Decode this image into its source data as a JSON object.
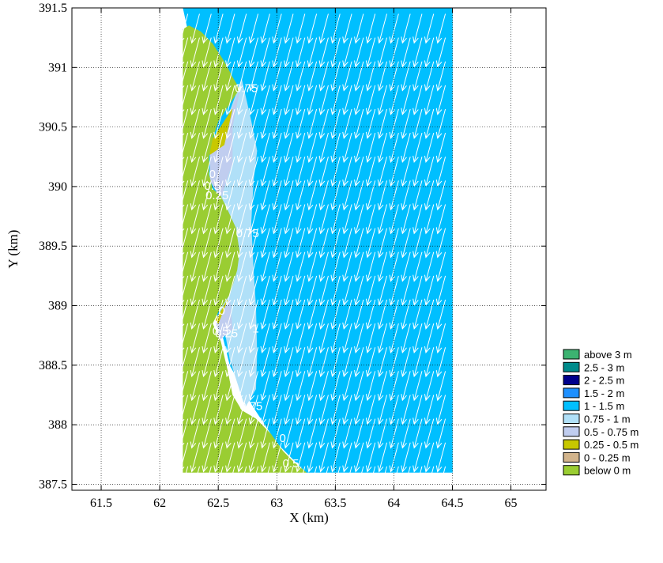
{
  "chart_data": {
    "type": "heatmap",
    "xlabel": "X (km)",
    "ylabel": "Y (km)",
    "xlim": [
      61.25,
      65.3
    ],
    "ylim": [
      387.45,
      391.5
    ],
    "x_ticks": [
      61.5,
      62,
      62.5,
      63,
      63.5,
      64,
      64.5,
      65
    ],
    "y_ticks": [
      387.5,
      388,
      388.5,
      389,
      389.5,
      390,
      390.5,
      391,
      391.5
    ],
    "x_tick_labels": [
      "61.5",
      "62",
      "62.5",
      "63",
      "63.5",
      "64",
      "64.5",
      "65"
    ],
    "y_tick_labels": [
      "387.5",
      "388",
      "388.5",
      "389",
      "389.5",
      "390",
      "390.5",
      "391",
      "391.5"
    ],
    "grid": true,
    "legend_position": "right-bottom",
    "legend": [
      {
        "label": "above 3 m",
        "color": "#3cb371"
      },
      {
        "label": "2.5 - 3 m",
        "color": "#008b8b"
      },
      {
        "label": "2 - 2.5 m",
        "color": "#00008b"
      },
      {
        "label": "1.5 - 2 m",
        "color": "#1e90ff"
      },
      {
        "label": "1 - 1.5 m",
        "color": "#00bfff"
      },
      {
        "label": "0.75 - 1 m",
        "color": "#b0e0f8"
      },
      {
        "label": "0.5 - 0.75 m",
        "color": "#c0cdef"
      },
      {
        "label": "0.25 - 0.5 m",
        "color": "#c8c800"
      },
      {
        "label": "0 - 0.25 m",
        "color": "#d2b48c"
      },
      {
        "label": "below 0 m",
        "color": "#9acd32"
      }
    ],
    "domain": {
      "x": [
        62.2,
        64.5
      ],
      "y": [
        387.6,
        391.5
      ]
    },
    "regions": [
      {
        "band": "1 - 1.5 m",
        "color": "#00bfff",
        "polygon": [
          [
            62.2,
            391.5
          ],
          [
            64.5,
            391.5
          ],
          [
            64.5,
            387.6
          ],
          [
            63.25,
            387.6
          ],
          [
            63.0,
            387.85
          ],
          [
            62.8,
            388.15
          ],
          [
            62.6,
            388.5
          ],
          [
            62.45,
            389.1
          ],
          [
            62.4,
            389.9
          ],
          [
            62.4,
            390.6
          ],
          [
            62.2,
            391.5
          ]
        ]
      },
      {
        "band": "0.75 - 1 m",
        "color": "#b0e0f8",
        "polygon": [
          [
            62.7,
            390.9
          ],
          [
            62.78,
            390.55
          ],
          [
            62.83,
            390.3
          ],
          [
            62.8,
            390.05
          ],
          [
            62.78,
            389.7
          ],
          [
            62.8,
            389.3
          ],
          [
            62.82,
            389.0
          ],
          [
            62.83,
            388.6
          ],
          [
            62.82,
            388.3
          ],
          [
            62.73,
            388.15
          ],
          [
            62.6,
            388.55
          ],
          [
            62.5,
            389.1
          ],
          [
            62.55,
            389.8
          ],
          [
            62.45,
            390.1
          ],
          [
            62.55,
            390.5
          ],
          [
            62.7,
            390.9
          ]
        ]
      },
      {
        "band": "0.5 - 0.75 m",
        "color": "#c0cdef",
        "polygon": [
          [
            62.68,
            390.8
          ],
          [
            62.55,
            390.5
          ],
          [
            62.43,
            390.3
          ],
          [
            62.43,
            390.05
          ],
          [
            62.52,
            389.9
          ],
          [
            62.62,
            390.2
          ],
          [
            62.62,
            390.5
          ],
          [
            62.68,
            390.8
          ]
        ]
      },
      {
        "band": "0.5 - 0.75 m",
        "color": "#c0cdef",
        "polygon": [
          [
            62.6,
            389.05
          ],
          [
            62.48,
            388.85
          ],
          [
            62.52,
            388.72
          ],
          [
            62.62,
            388.8
          ],
          [
            62.6,
            389.05
          ]
        ]
      },
      {
        "band": "0.25 - 0.5 m",
        "color": "#c8c800",
        "polygon": [
          [
            62.62,
            390.65
          ],
          [
            62.42,
            390.35
          ],
          [
            62.43,
            390.27
          ],
          [
            62.55,
            390.35
          ],
          [
            62.62,
            390.65
          ]
        ]
      },
      {
        "band": "0.25 - 0.5 m",
        "color": "#c8c800",
        "polygon": [
          [
            62.58,
            389.05
          ],
          [
            62.48,
            388.88
          ],
          [
            62.5,
            388.85
          ],
          [
            62.58,
            389.05
          ]
        ]
      },
      {
        "band": "below 0 m",
        "color": "#9acd32",
        "polygon": [
          [
            62.2,
            391.32
          ],
          [
            62.25,
            391.35
          ],
          [
            62.35,
            391.3
          ],
          [
            62.45,
            391.2
          ],
          [
            62.55,
            391.05
          ],
          [
            62.62,
            390.92
          ],
          [
            62.68,
            390.82
          ],
          [
            62.6,
            390.7
          ],
          [
            62.5,
            390.55
          ],
          [
            62.45,
            390.4
          ],
          [
            62.42,
            390.25
          ],
          [
            62.42,
            390.1
          ],
          [
            62.45,
            389.98
          ],
          [
            62.52,
            389.92
          ],
          [
            62.58,
            389.8
          ],
          [
            62.65,
            389.65
          ],
          [
            62.68,
            389.45
          ],
          [
            62.66,
            389.3
          ],
          [
            62.6,
            389.1
          ],
          [
            62.5,
            388.95
          ],
          [
            62.45,
            388.85
          ],
          [
            62.52,
            388.7
          ],
          [
            62.58,
            388.45
          ],
          [
            62.62,
            388.25
          ],
          [
            62.7,
            388.12
          ],
          [
            62.82,
            388.05
          ],
          [
            62.95,
            387.92
          ],
          [
            63.05,
            387.78
          ],
          [
            63.15,
            387.68
          ],
          [
            63.25,
            387.6
          ],
          [
            62.2,
            387.6
          ],
          [
            62.2,
            391.32
          ]
        ]
      }
    ],
    "contour_labels": [
      {
        "text": "0.75",
        "x": 62.74,
        "y": 390.82
      },
      {
        "text": "0",
        "x": 62.45,
        "y": 390.1
      },
      {
        "text": "0.5",
        "x": 62.45,
        "y": 390.0
      },
      {
        "text": "0.25",
        "x": 62.49,
        "y": 389.92
      },
      {
        "text": "0.75",
        "x": 62.75,
        "y": 389.6
      },
      {
        "text": "0",
        "x": 62.53,
        "y": 388.95
      },
      {
        "text": "0.5",
        "x": 62.52,
        "y": 388.78
      },
      {
        "text": "0.25",
        "x": 62.57,
        "y": 388.76
      },
      {
        "text": "1",
        "x": 62.82,
        "y": 388.8
      },
      {
        "text": "0.75",
        "x": 62.78,
        "y": 388.15
      },
      {
        "text": "0",
        "x": 63.05,
        "y": 387.88
      },
      {
        "text": "0.5",
        "x": 63.12,
        "y": 387.67
      }
    ],
    "vector_field": {
      "color": "#ffffff",
      "direction_deg_from_north": 195,
      "x_start": 62.24,
      "x_step": 0.1,
      "x_end": 64.45,
      "y_start": 391.45,
      "y_step": 0.2,
      "y_end": 387.65
    }
  }
}
